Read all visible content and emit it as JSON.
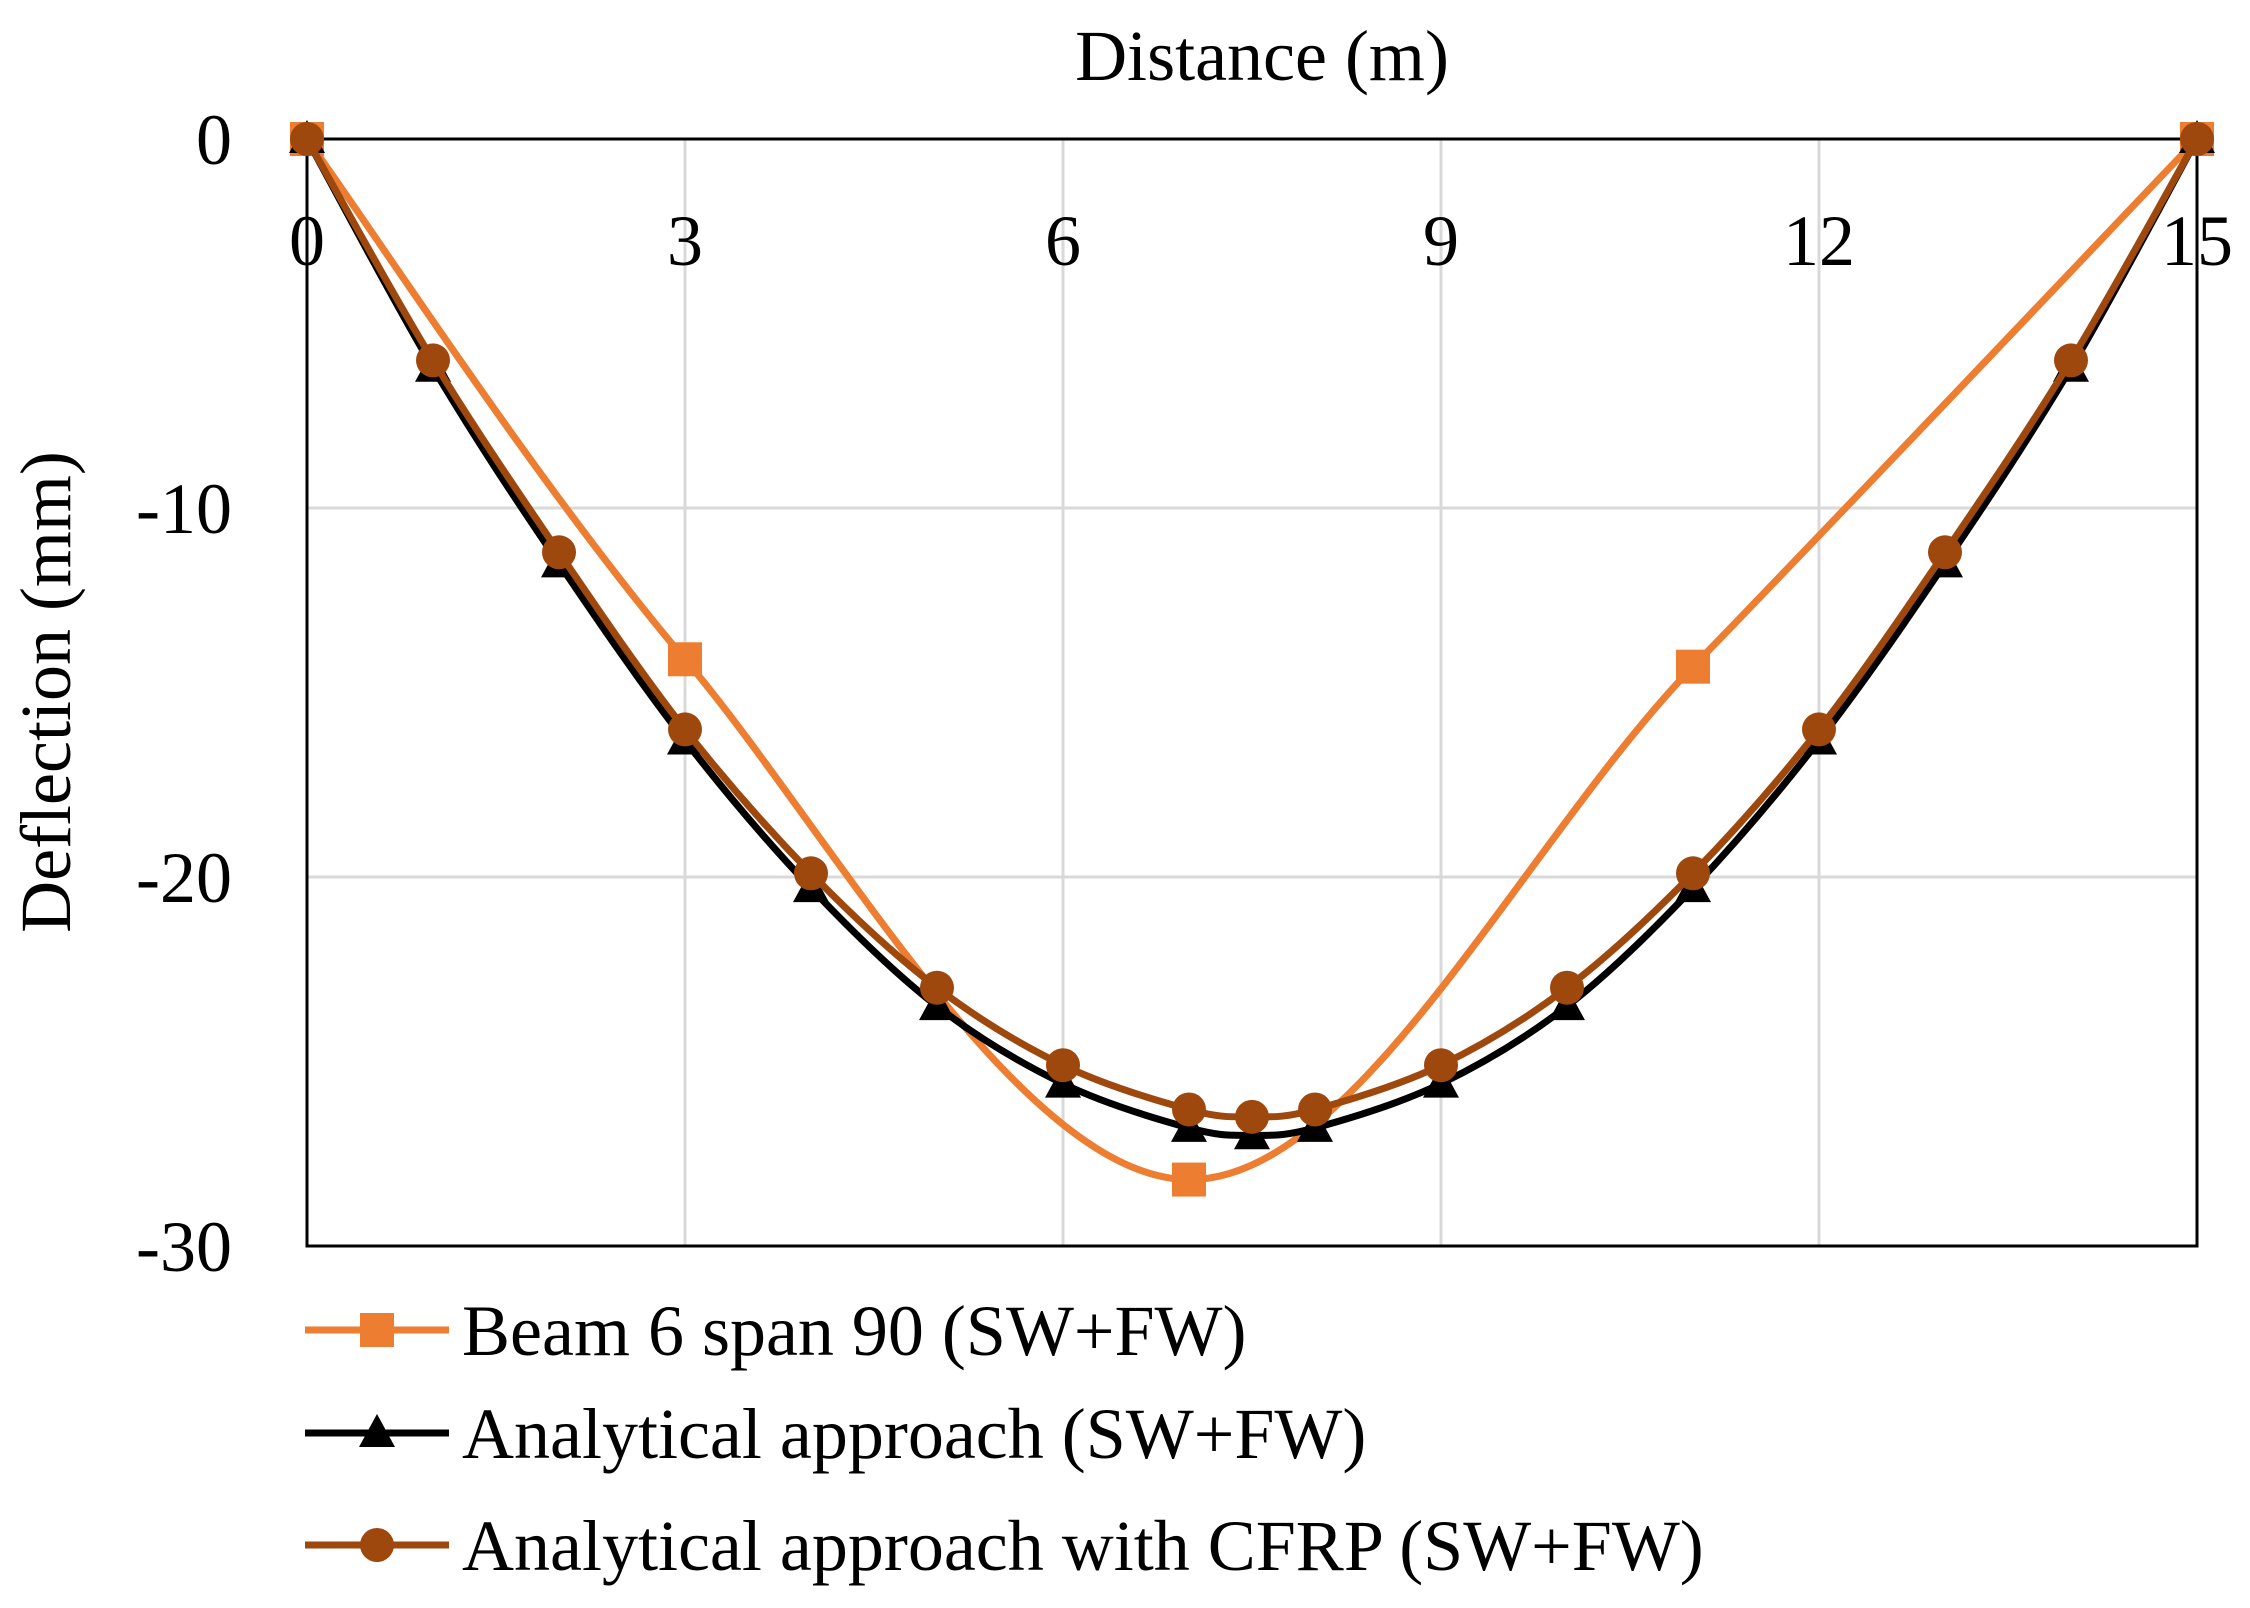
{
  "chart_data": {
    "type": "line",
    "xlabel": "Distance  (m)",
    "ylabel": "Deflection  (mm)",
    "xlim": [
      0,
      15
    ],
    "ylim": [
      -30,
      0
    ],
    "x_ticks": [
      0,
      3,
      6,
      9,
      12,
      15
    ],
    "y_ticks": [
      0,
      -10,
      -20,
      -30
    ],
    "x_tick_labels": [
      "0",
      "3",
      "6",
      "9",
      "12",
      "15"
    ],
    "y_tick_labels": [
      "0",
      "-10",
      "-20",
      "-30"
    ],
    "grid": true,
    "x_axis_position": "top",
    "legend_position": "bottom",
    "series": [
      {
        "name": "Beam 6 span 90 (SW+FW)",
        "color": "#ED7D31",
        "marker": "square",
        "x": [
          0,
          3,
          7,
          11,
          15
        ],
        "y": [
          0,
          -14.1,
          -28.2,
          -14.3,
          0
        ]
      },
      {
        "name": "Analytical approach (SW+FW)",
        "color": "#000000",
        "marker": "triangle",
        "x": [
          0,
          1,
          2,
          3,
          4,
          5,
          6,
          7,
          7.5,
          8,
          9,
          10,
          11,
          12,
          13,
          14,
          15
        ],
        "y": [
          0,
          -6.2,
          -11.5,
          -16.3,
          -20.3,
          -23.5,
          -25.6,
          -26.8,
          -27.0,
          -26.8,
          -25.6,
          -23.5,
          -20.3,
          -16.3,
          -11.5,
          -6.2,
          0
        ]
      },
      {
        "name": "Analytical approach with CFRP (SW+FW)",
        "color": "#9E480E",
        "marker": "circle",
        "x": [
          0,
          1,
          2,
          3,
          4,
          5,
          6,
          7,
          7.5,
          8,
          9,
          10,
          11,
          12,
          13,
          14,
          15
        ],
        "y": [
          0,
          -6.0,
          -11.2,
          -16.0,
          -19.9,
          -23.0,
          -25.1,
          -26.3,
          -26.5,
          -26.3,
          -25.1,
          -23.0,
          -19.9,
          -16.0,
          -11.2,
          -6.0,
          0
        ]
      }
    ]
  }
}
